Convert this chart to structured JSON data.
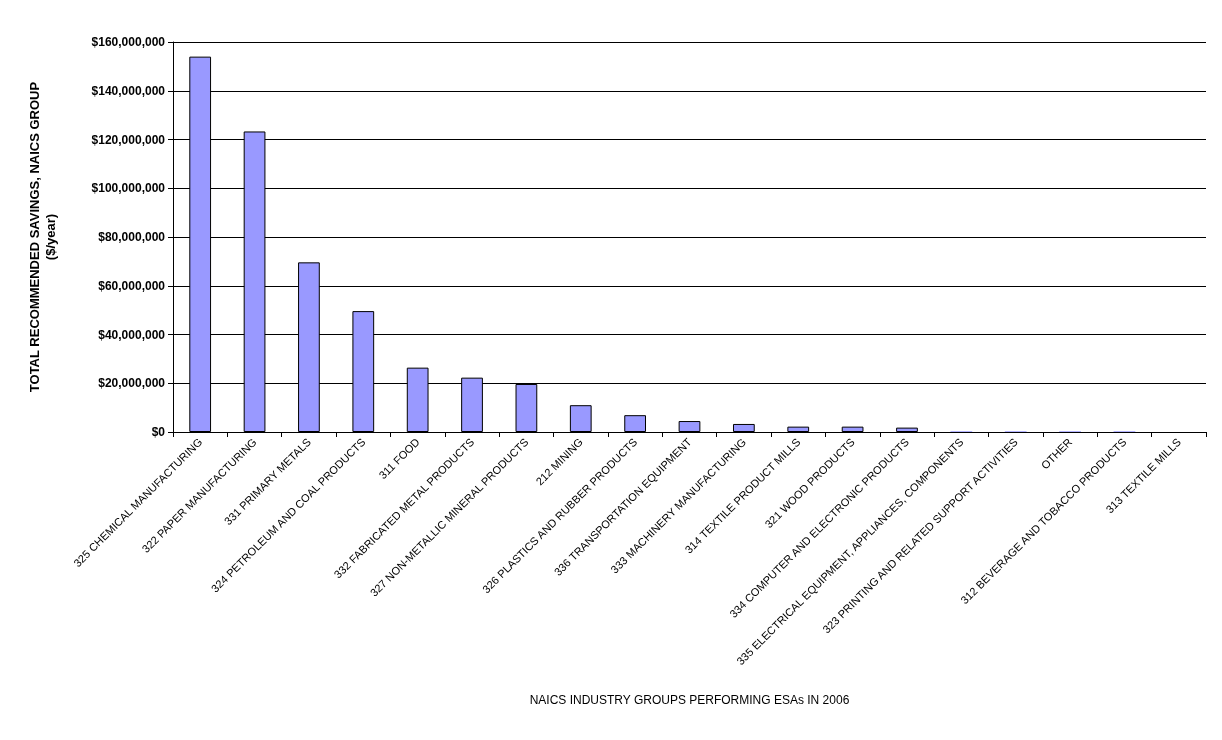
{
  "chart_data": {
    "type": "bar",
    "xlabel": "NAICS INDUSTRY GROUPS PERFORMING ESAs IN 2006",
    "ylabel": "TOTAL RECOMMENDED SAVINGS, NAICS GROUP\n($/year)",
    "categories": [
      "325 CHEMICAL MANUFACTURING",
      "322 PAPER MANUFACTURING",
      "331 PRIMARY METALS",
      "324 PETROLEUM AND COAL PRODUCTS",
      "311 FOOD",
      "332 FABRICATED METAL PRODUCTS",
      "327 NON-METALLIC MINERAL PRODUCTS",
      "212 MINING",
      "326 PLASTICS AND RUBBER PRODUCTS",
      "336 TRANSPORTATION EQUIPMENT",
      "333 MACHINERY MANUFACTURING",
      "314 TEXTILE PRODUCT MILLS",
      "321 WOOD PRODUCTS",
      "334 COMPUTER AND ELECTRONIC PRODUCTS",
      "335 ELECTRICAL EQUIPMENT, APPLIANCES, COMPONENTS",
      "323 PRINTING AND RELATED SUPPORT ACTIVITIES",
      "OTHER",
      "312 BEVERAGE AND TOBACCO PRODUCTS",
      "313 TEXTILE MILLS"
    ],
    "values": [
      154000000,
      123300000,
      69600000,
      49600000,
      26400000,
      22300000,
      19700000,
      11000000,
      6900000,
      4500000,
      3300000,
      2200000,
      2200000,
      1800000,
      300000,
      300000,
      300000,
      300000,
      0
    ],
    "color": "#9999ff",
    "ylim": [
      0,
      160000000
    ],
    "yticks": [
      {
        "value": 0,
        "label": "$0"
      },
      {
        "value": 20000000,
        "label": "$20,000,000"
      },
      {
        "value": 40000000,
        "label": "$40,000,000"
      },
      {
        "value": 60000000,
        "label": "$60,000,000"
      },
      {
        "value": 80000000,
        "label": "$80,000,000"
      },
      {
        "value": 100000000,
        "label": "$100,000,000"
      },
      {
        "value": 120000000,
        "label": "$120,000,000"
      },
      {
        "value": 140000000,
        "label": "$140,000,000"
      },
      {
        "value": 160000000,
        "label": "$160,000,000"
      }
    ],
    "grid": "y"
  }
}
